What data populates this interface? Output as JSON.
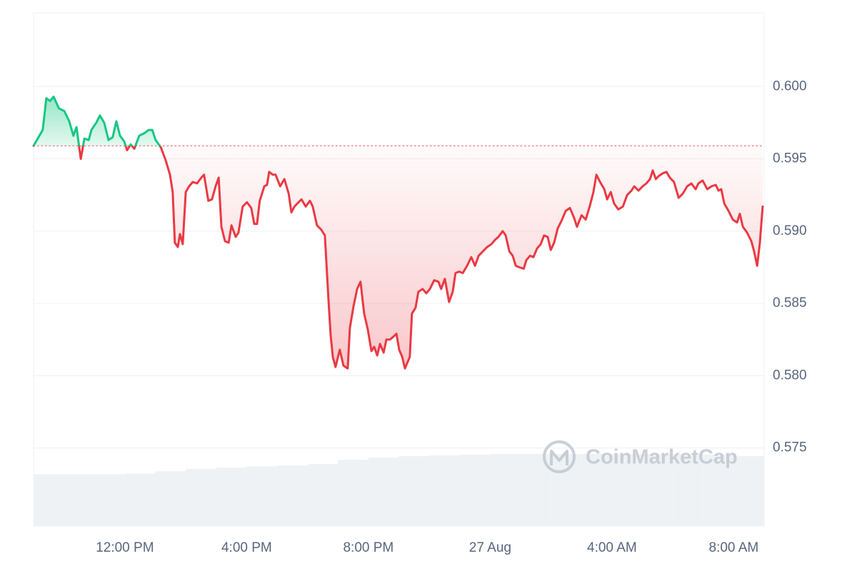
{
  "chart_data": {
    "type": "line",
    "x": [
      9.0,
      9.3,
      9.42,
      9.54,
      9.66,
      9.83,
      10.01,
      10.17,
      10.31,
      10.41,
      10.55,
      10.67,
      10.81,
      10.9,
      11.06,
      11.18,
      11.32,
      11.46,
      11.6,
      11.72,
      11.84,
      11.98,
      12.07,
      12.19,
      12.31,
      12.47,
      12.66,
      12.78,
      12.9,
      13.01,
      13.18,
      13.34,
      13.48,
      13.57,
      13.64,
      13.74,
      13.81,
      13.9,
      14.0,
      14.11,
      14.23,
      14.37,
      14.51,
      14.6,
      14.74,
      14.86,
      14.98,
      15.08,
      15.17,
      15.29,
      15.41,
      15.5,
      15.64,
      15.73,
      15.87,
      16.01,
      16.15,
      16.25,
      16.34,
      16.43,
      16.58,
      16.67,
      16.74,
      16.86,
      16.95,
      17.1,
      17.24,
      17.38,
      17.47,
      17.57,
      17.66,
      17.8,
      17.94,
      18.08,
      18.17,
      18.31,
      18.45,
      18.57,
      18.69,
      18.76,
      18.83,
      18.92,
      19.06,
      19.18,
      19.32,
      19.39,
      19.51,
      19.63,
      19.74,
      19.86,
      19.98,
      20.1,
      20.19,
      20.29,
      20.38,
      20.5,
      20.59,
      20.71,
      20.82,
      20.92,
      21.01,
      21.11,
      21.2,
      21.36,
      21.43,
      21.55,
      21.64,
      21.78,
      21.9,
      22.02,
      22.16,
      22.3,
      22.39,
      22.51,
      22.65,
      22.77,
      22.86,
      22.98,
      23.1,
      23.24,
      23.38,
      23.5,
      23.62,
      23.76,
      23.9,
      24.04,
      24.16,
      24.27,
      24.41,
      24.51,
      24.63,
      24.74,
      24.84,
      24.96,
      25.1,
      25.19,
      25.31,
      25.42,
      25.54,
      25.66,
      25.77,
      25.89,
      25.99,
      26.1,
      26.22,
      26.34,
      26.48,
      26.62,
      26.76,
      26.85,
      27.0,
      27.14,
      27.28,
      27.39,
      27.49,
      27.61,
      27.75,
      27.84,
      27.96,
      28.07,
      28.21,
      28.36,
      28.5,
      28.64,
      28.73,
      28.87,
      29.01,
      29.13,
      29.25,
      29.34,
      29.44,
      29.53,
      29.67,
      29.79,
      29.9,
      30.04,
      30.19,
      30.33,
      30.47,
      30.61,
      30.75,
      30.84,
      30.98,
      31.13,
      31.27,
      31.41,
      31.5,
      31.59,
      31.69,
      31.83,
      31.97,
      32.11,
      32.2,
      32.3,
      32.44,
      32.58,
      32.67,
      32.77,
      32.86,
      32.95
    ],
    "values": [
      0.5959,
      0.597,
      0.5992,
      0.599,
      0.5993,
      0.5985,
      0.5983,
      0.5976,
      0.5966,
      0.5972,
      0.595,
      0.5964,
      0.5963,
      0.597,
      0.5975,
      0.598,
      0.5975,
      0.5963,
      0.5965,
      0.5976,
      0.5966,
      0.5962,
      0.5956,
      0.596,
      0.5957,
      0.5966,
      0.5968,
      0.597,
      0.597,
      0.5963,
      0.5958,
      0.5949,
      0.5939,
      0.5927,
      0.5892,
      0.5889,
      0.5898,
      0.5891,
      0.5927,
      0.5931,
      0.5934,
      0.5933,
      0.5937,
      0.5939,
      0.5921,
      0.5922,
      0.5931,
      0.5937,
      0.5903,
      0.5893,
      0.5892,
      0.5904,
      0.5896,
      0.5899,
      0.5917,
      0.592,
      0.5916,
      0.5905,
      0.5905,
      0.5921,
      0.5931,
      0.5932,
      0.5941,
      0.5939,
      0.5939,
      0.5931,
      0.5936,
      0.5926,
      0.5913,
      0.5917,
      0.5919,
      0.5922,
      0.5917,
      0.5921,
      0.5917,
      0.5904,
      0.5901,
      0.5897,
      0.5852,
      0.5828,
      0.5813,
      0.5806,
      0.5818,
      0.5807,
      0.5805,
      0.5833,
      0.5848,
      0.586,
      0.5865,
      0.5843,
      0.5832,
      0.5817,
      0.582,
      0.5814,
      0.5822,
      0.5816,
      0.5825,
      0.5825,
      0.5827,
      0.5829,
      0.5818,
      0.5813,
      0.5805,
      0.5813,
      0.5843,
      0.5847,
      0.5858,
      0.586,
      0.5857,
      0.586,
      0.5866,
      0.5865,
      0.586,
      0.5867,
      0.5851,
      0.5858,
      0.5871,
      0.5872,
      0.5871,
      0.5876,
      0.5882,
      0.5876,
      0.5883,
      0.5886,
      0.5889,
      0.5891,
      0.5894,
      0.5896,
      0.59,
      0.5897,
      0.5886,
      0.5883,
      0.5876,
      0.5875,
      0.5874,
      0.588,
      0.5883,
      0.5882,
      0.5888,
      0.5891,
      0.5897,
      0.5896,
      0.5887,
      0.5892,
      0.5902,
      0.5907,
      0.5914,
      0.5916,
      0.5909,
      0.5903,
      0.5911,
      0.5908,
      0.5918,
      0.5927,
      0.5939,
      0.5934,
      0.5929,
      0.5922,
      0.5927,
      0.5919,
      0.5915,
      0.5917,
      0.5925,
      0.5928,
      0.5931,
      0.5928,
      0.5931,
      0.5933,
      0.5936,
      0.5942,
      0.5936,
      0.5938,
      0.594,
      0.5941,
      0.5937,
      0.5934,
      0.5923,
      0.5926,
      0.5931,
      0.5933,
      0.5929,
      0.5933,
      0.5935,
      0.5929,
      0.5931,
      0.5932,
      0.5928,
      0.5929,
      0.5919,
      0.5914,
      0.5908,
      0.5906,
      0.5912,
      0.5903,
      0.5899,
      0.5893,
      0.5886,
      0.5876,
      0.5892,
      0.5917
    ],
    "reference": 0.5959,
    "colors": {
      "up": "#16c784",
      "down": "#ea3943",
      "volume": "#eff2f5"
    },
    "xlim": [
      9,
      33
    ],
    "ylim": [
      0.5696,
      0.6051
    ],
    "xticks": [
      {
        "value": 12,
        "label": "12:00 PM"
      },
      {
        "value": 16,
        "label": "4:00 PM"
      },
      {
        "value": 20,
        "label": "8:00 PM"
      },
      {
        "value": 24,
        "label": "27 Aug"
      },
      {
        "value": 28,
        "label": "4:00 AM"
      },
      {
        "value": 32,
        "label": "8:00 AM"
      }
    ],
    "yticks": [
      {
        "value": 0.575,
        "label": "0.575"
      },
      {
        "value": 0.58,
        "label": "0.580"
      },
      {
        "value": 0.585,
        "label": "0.585"
      },
      {
        "value": 0.59,
        "label": "0.590"
      },
      {
        "value": 0.595,
        "label": "0.595"
      },
      {
        "value": 0.6,
        "label": "0.600"
      }
    ],
    "grid": true,
    "y_axis_side": "right",
    "volume": {
      "x": [
        9,
        10,
        11,
        12,
        13,
        14,
        15,
        16,
        17,
        18,
        19,
        20,
        21,
        22,
        23,
        24,
        25,
        26,
        27,
        28,
        29,
        30,
        31,
        32
      ],
      "values": [
        72,
        72,
        72,
        73,
        76,
        79,
        81,
        83,
        84,
        86,
        92,
        95,
        97,
        98,
        99,
        100,
        100,
        100,
        100,
        100,
        100,
        100,
        99,
        97
      ]
    },
    "watermark": "CoinMarketCap"
  }
}
